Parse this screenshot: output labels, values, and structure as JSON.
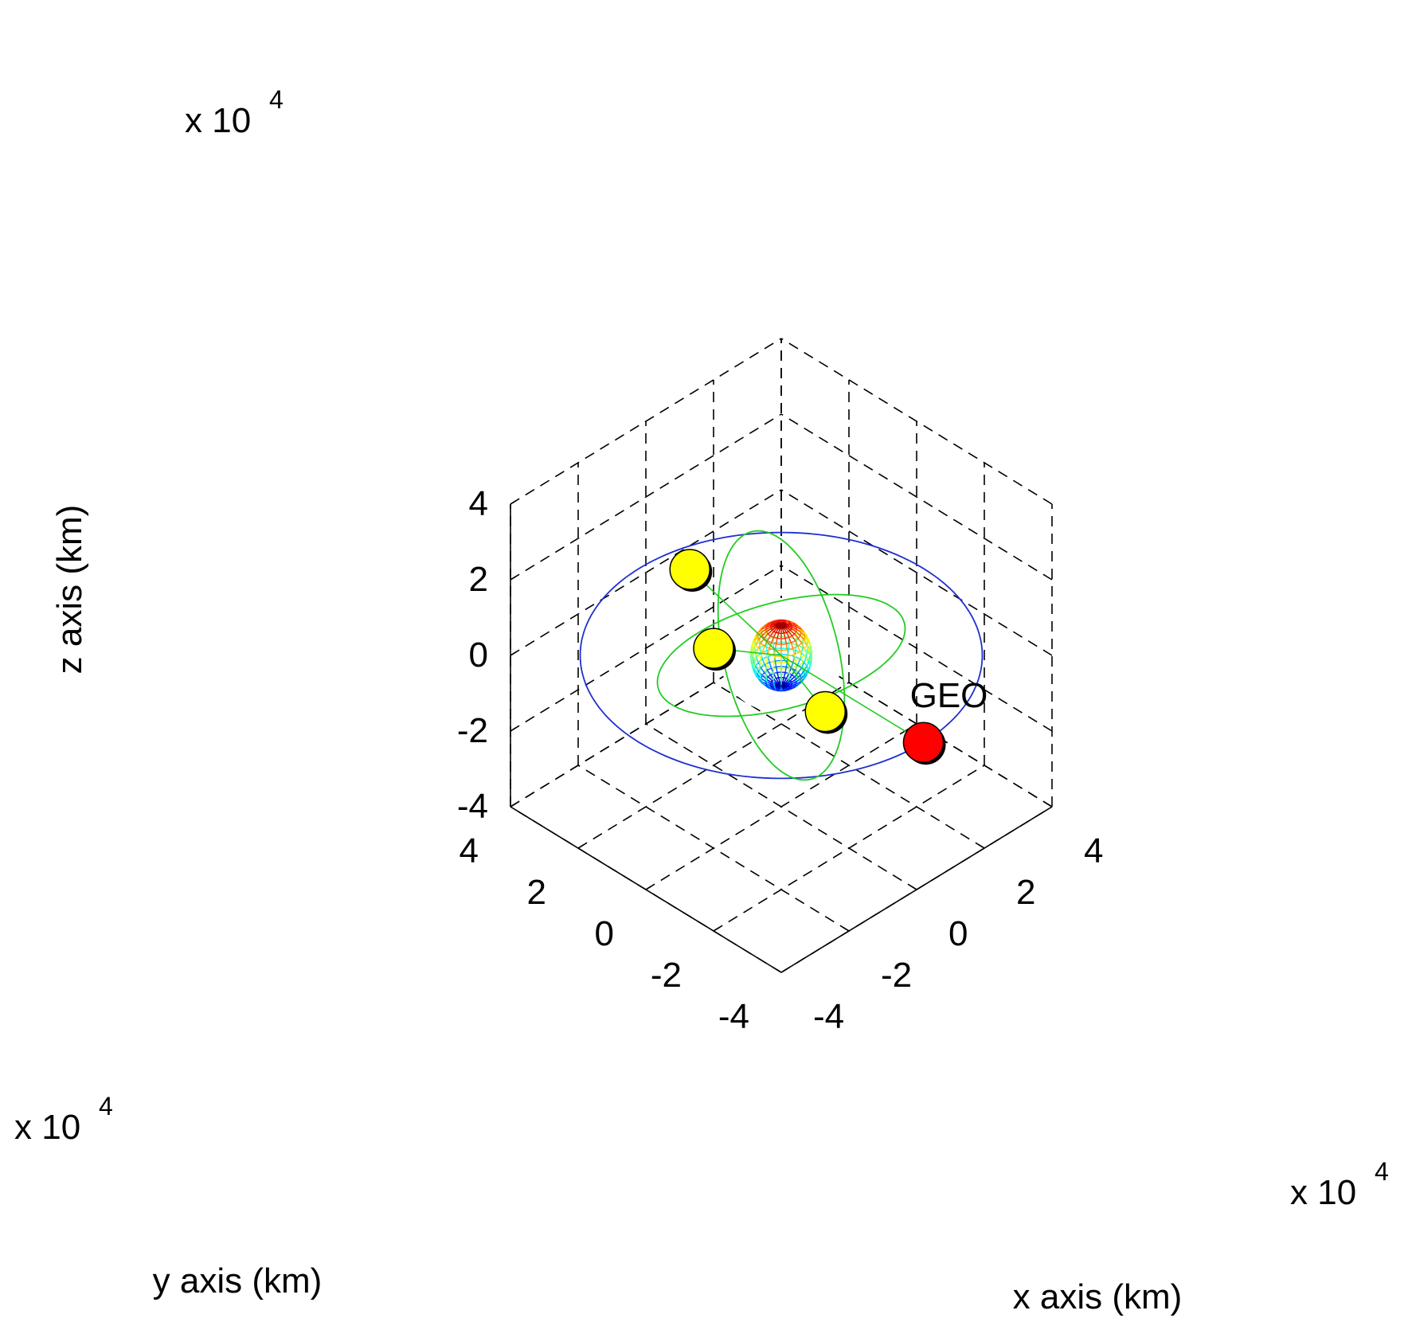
{
  "chart_data": {
    "type": "scatter3d",
    "xlabel": "x axis (km)",
    "ylabel": "y axis (km)",
    "zlabel": "z axis (km)",
    "x_multiplier": "x 10",
    "x_multiplier_exp": "4",
    "y_multiplier": "x 10",
    "y_multiplier_exp": "4",
    "z_multiplier": "x 10",
    "z_multiplier_exp": "4",
    "xlim": [
      -4,
      4
    ],
    "ylim": [
      -4,
      4
    ],
    "zlim": [
      -4,
      4
    ],
    "xticks": [
      -4,
      -2,
      0,
      2,
      4
    ],
    "yticks": [
      -4,
      -2,
      0,
      2,
      4
    ],
    "zticks": [
      -4,
      -2,
      0,
      2,
      4
    ],
    "grid": true,
    "earth": {
      "center": [
        0,
        0,
        0
      ],
      "radius": 0.64,
      "style": "colored wireframe sphere"
    },
    "orbits": [
      {
        "kind": "equatorial",
        "color": "#1f2fd0",
        "radius": 4.2,
        "inclination_deg": 0
      },
      {
        "kind": "inclined-a",
        "color": "#22cc22",
        "radius": 2.66,
        "inclination_deg": 64,
        "raan_deg": 30
      },
      {
        "kind": "inclined-b",
        "color": "#22cc22",
        "radius": 2.66,
        "inclination_deg": 64,
        "raan_deg": 150
      }
    ],
    "satellites": [
      {
        "label": "GEO",
        "position": [
          0,
          -4.2,
          0
        ],
        "color": "#ff0000"
      },
      {
        "label": "",
        "position": [
          -1.1,
          1.6,
          2.0
        ],
        "color": "#ffff00"
      },
      {
        "label": "",
        "position": [
          -2.2,
          -0.2,
          1.5
        ],
        "color": "#ffff00"
      },
      {
        "label": "",
        "position": [
          0.3,
          -1.0,
          -1.1
        ],
        "color": "#ffff00"
      }
    ]
  }
}
